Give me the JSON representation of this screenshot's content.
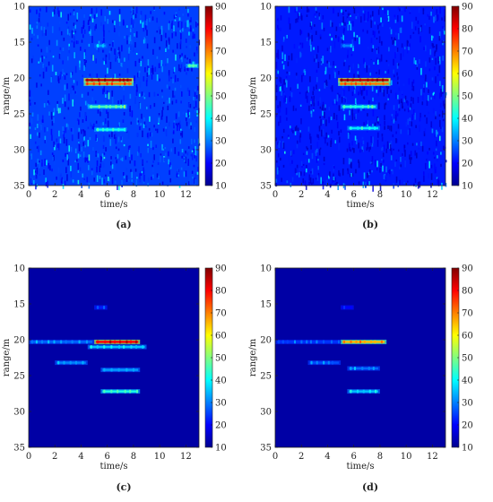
{
  "figure": {
    "colorscale": [
      "#00008f",
      "#0000ff",
      "#0080ff",
      "#00ffff",
      "#80ff80",
      "#ffff00",
      "#ff8000",
      "#ff0000",
      "#800000"
    ],
    "panels": [
      "(a)",
      "(b)",
      "(c)",
      "(d)"
    ]
  },
  "chart_data": [
    {
      "type": "heatmap",
      "panel": "(a)",
      "xlabel": "time/s",
      "ylabel": "range/m",
      "xlim": [
        0,
        13
      ],
      "ylim": [
        35,
        10
      ],
      "y_reversed": true,
      "xticks": [
        "0",
        "2",
        "4",
        "6",
        "8",
        "10",
        "12"
      ],
      "yticks": [
        "10",
        "15",
        "20",
        "25",
        "30",
        "35"
      ],
      "colorbar": {
        "min": 10,
        "max": 90,
        "ticks": [
          "10",
          "20",
          "30",
          "40",
          "50",
          "60",
          "70",
          "80",
          "90"
        ]
      },
      "background": "speckle",
      "background_level": 25,
      "features": [
        {
          "t0": 4.2,
          "t1": 8.0,
          "range": 20.3,
          "value": 85
        },
        {
          "t0": 4.2,
          "t1": 8.0,
          "range": 20.8,
          "value": 70
        },
        {
          "t0": 4.5,
          "t1": 7.5,
          "range": 24.0,
          "value": 45
        },
        {
          "t0": 5.0,
          "t1": 7.5,
          "range": 27.2,
          "value": 40
        },
        {
          "t0": 12.0,
          "t1": 13.0,
          "range": 18.3,
          "value": 45
        },
        {
          "t0": 5.0,
          "t1": 6.0,
          "range": 15.5,
          "value": 32
        }
      ]
    },
    {
      "type": "heatmap",
      "panel": "(b)",
      "xlabel": "time/s",
      "ylabel": "range/m",
      "xlim": [
        0,
        13
      ],
      "ylim": [
        35,
        10
      ],
      "y_reversed": true,
      "xticks": [
        "0",
        "2",
        "4",
        "6",
        "8",
        "10",
        "12"
      ],
      "yticks": [
        "10",
        "15",
        "20",
        "25",
        "30",
        "35"
      ],
      "colorbar": {
        "min": 10,
        "max": 90,
        "ticks": [
          "10",
          "20",
          "30",
          "40",
          "50",
          "60",
          "70",
          "80",
          "90"
        ]
      },
      "background": "speckle",
      "background_level": 22,
      "features": [
        {
          "t0": 4.8,
          "t1": 8.8,
          "range": 20.3,
          "value": 85
        },
        {
          "t0": 4.8,
          "t1": 8.8,
          "range": 20.8,
          "value": 70
        },
        {
          "t0": 5.0,
          "t1": 7.8,
          "range": 24.0,
          "value": 42
        },
        {
          "t0": 5.5,
          "t1": 8.0,
          "range": 27.0,
          "value": 38
        },
        {
          "t0": 5.0,
          "t1": 6.0,
          "range": 15.5,
          "value": 30
        }
      ]
    },
    {
      "type": "heatmap",
      "panel": "(c)",
      "xlabel": "time/s",
      "ylabel": "range/m",
      "xlim": [
        0,
        13
      ],
      "ylim": [
        35,
        10
      ],
      "y_reversed": true,
      "xticks": [
        "0",
        "2",
        "4",
        "6",
        "8",
        "10",
        "12"
      ],
      "yticks": [
        "10",
        "15",
        "20",
        "25",
        "30",
        "35"
      ],
      "colorbar": {
        "min": 10,
        "max": 90,
        "ticks": [
          "10",
          "20",
          "30",
          "40",
          "50",
          "60",
          "70",
          "80",
          "90"
        ]
      },
      "background": "flat",
      "background_level": 12,
      "features": [
        {
          "t0": 5.0,
          "t1": 8.5,
          "range": 20.3,
          "value": 80
        },
        {
          "t0": 0.0,
          "t1": 5.0,
          "range": 20.3,
          "value": 28
        },
        {
          "t0": 4.5,
          "t1": 9.0,
          "range": 21.0,
          "value": 35
        },
        {
          "t0": 2.0,
          "t1": 4.5,
          "range": 23.2,
          "value": 30
        },
        {
          "t0": 5.5,
          "t1": 8.5,
          "range": 24.2,
          "value": 32
        },
        {
          "t0": 5.5,
          "t1": 8.5,
          "range": 27.2,
          "value": 42
        },
        {
          "t0": 5.0,
          "t1": 6.0,
          "range": 15.5,
          "value": 22
        }
      ]
    },
    {
      "type": "heatmap",
      "panel": "(d)",
      "xlabel": "time/s",
      "ylabel": "range/m",
      "xlim": [
        0,
        13
      ],
      "ylim": [
        35,
        10
      ],
      "y_reversed": true,
      "xticks": [
        "0",
        "2",
        "4",
        "6",
        "8",
        "10",
        "12"
      ],
      "yticks": [
        "10",
        "15",
        "20",
        "25",
        "30",
        "35"
      ],
      "colorbar": {
        "min": 10,
        "max": 90,
        "ticks": [
          "10",
          "20",
          "30",
          "40",
          "50",
          "60",
          "70",
          "80",
          "90"
        ]
      },
      "background": "flat",
      "background_level": 12,
      "features": [
        {
          "t0": 5.0,
          "t1": 8.5,
          "range": 20.3,
          "value": 65
        },
        {
          "t0": 0.0,
          "t1": 5.0,
          "range": 20.3,
          "value": 24
        },
        {
          "t0": 2.5,
          "t1": 5.0,
          "range": 23.2,
          "value": 26
        },
        {
          "t0": 5.5,
          "t1": 8.0,
          "range": 24.0,
          "value": 28
        },
        {
          "t0": 5.5,
          "t1": 8.0,
          "range": 27.2,
          "value": 35
        },
        {
          "t0": 5.0,
          "t1": 6.0,
          "range": 15.5,
          "value": 20
        }
      ]
    }
  ]
}
